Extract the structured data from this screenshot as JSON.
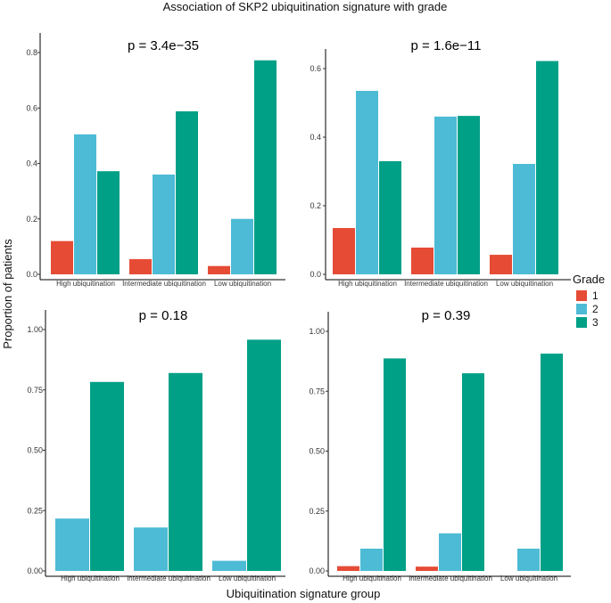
{
  "title": "Association of SKP2 ubiquitination signature with grade",
  "xlabel": "Ubiquitination signature group",
  "ylabel": "Proportion of patients",
  "legend": {
    "title": "Grade",
    "entries": [
      {
        "label": "1",
        "color": "#E64B35"
      },
      {
        "label": "2",
        "color": "#4DBBD5"
      },
      {
        "label": "3",
        "color": "#00A087"
      }
    ]
  },
  "chart_data": [
    {
      "type": "bar",
      "pvalue": "p = 3.4e−35",
      "categories": [
        "High ubiquitination",
        "Intermediate ubiquitination",
        "Low ubiquitination"
      ],
      "ylim": [
        0,
        0.8
      ],
      "yticks": [
        0,
        0.2,
        0.4,
        0.6,
        0.8
      ],
      "ytick_labels": [
        "0.0",
        "0.2",
        "0.4",
        "0.6",
        "0.8"
      ],
      "series": [
        {
          "name": "1",
          "values": [
            0.12,
            0.055,
            0.03
          ]
        },
        {
          "name": "2",
          "values": [
            0.505,
            0.36,
            0.2
          ]
        },
        {
          "name": "3",
          "values": [
            0.372,
            0.588,
            0.772
          ]
        }
      ]
    },
    {
      "type": "bar",
      "pvalue": "p = 1.6e−11",
      "categories": [
        "High ubiquitination",
        "Intermediate ubiquitination",
        "Low ubiquitination"
      ],
      "ylim": [
        0,
        0.6
      ],
      "yticks": [
        0,
        0.2,
        0.4,
        0.6
      ],
      "ytick_labels": [
        "0.0",
        "0.2",
        "0.4",
        "0.6"
      ],
      "series": [
        {
          "name": "1",
          "values": [
            0.135,
            0.078,
            0.057
          ]
        },
        {
          "name": "2",
          "values": [
            0.535,
            0.46,
            0.322
          ]
        },
        {
          "name": "3",
          "values": [
            0.33,
            0.462,
            0.622
          ]
        }
      ]
    },
    {
      "type": "bar",
      "pvalue": "p = 0.18",
      "categories": [
        "High ubiquitination",
        "Intermediate ubiquitination",
        "Low ubiquitination"
      ],
      "ylim": [
        0,
        1.0
      ],
      "yticks": [
        0,
        0.25,
        0.5,
        0.75,
        1.0
      ],
      "ytick_labels": [
        "0.00",
        "0.25",
        "0.50",
        "0.75",
        "1.00"
      ],
      "series": [
        {
          "name": "1",
          "values": [
            0,
            0,
            0
          ]
        },
        {
          "name": "2",
          "values": [
            0.217,
            0.18,
            0.042
          ]
        },
        {
          "name": "3",
          "values": [
            0.783,
            0.82,
            0.958
          ]
        }
      ]
    },
    {
      "type": "bar",
      "pvalue": "p = 0.39",
      "categories": [
        "High ubiquitination",
        "Intermediate ubiquitination",
        "Low ubiquitination"
      ],
      "ylim": [
        0,
        1.0
      ],
      "yticks": [
        0,
        0.25,
        0.5,
        0.75,
        1.0
      ],
      "ytick_labels": [
        "0.00",
        "0.25",
        "0.50",
        "0.75",
        "1.00"
      ],
      "series": [
        {
          "name": "1",
          "values": [
            0.02,
            0.018,
            0
          ]
        },
        {
          "name": "2",
          "values": [
            0.093,
            0.157,
            0.093
          ]
        },
        {
          "name": "3",
          "values": [
            0.887,
            0.825,
            0.907
          ]
        }
      ]
    }
  ]
}
